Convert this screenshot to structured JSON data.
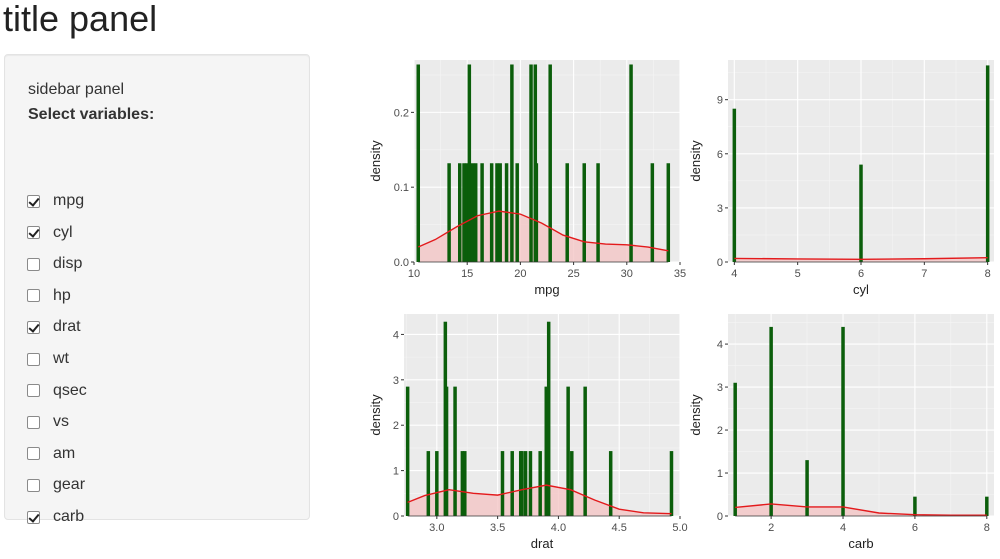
{
  "title": "title panel",
  "sidebar": {
    "heading": "sidebar panel",
    "label": "Select variables:",
    "options": [
      {
        "label": "mpg",
        "checked": true
      },
      {
        "label": "cyl",
        "checked": true
      },
      {
        "label": "disp",
        "checked": false
      },
      {
        "label": "hp",
        "checked": false
      },
      {
        "label": "drat",
        "checked": true
      },
      {
        "label": "wt",
        "checked": false
      },
      {
        "label": "qsec",
        "checked": false
      },
      {
        "label": "vs",
        "checked": false
      },
      {
        "label": "am",
        "checked": false
      },
      {
        "label": "gear",
        "checked": false
      },
      {
        "label": "carb",
        "checked": true
      }
    ]
  },
  "colors": {
    "bar": "#0b5e0b",
    "density_line": "#e31a1c",
    "density_fill": "#f4c6c6",
    "panel_bg": "#ebebeb"
  },
  "chart_data": [
    {
      "type": "bar",
      "title": "",
      "xlabel": "mpg",
      "ylabel": "density",
      "xlim": [
        10,
        35
      ],
      "ylim": [
        0,
        0.27
      ],
      "xticks": [
        10,
        15,
        20,
        25,
        30,
        35
      ],
      "xtick_labels": [
        "10",
        "15",
        "20",
        "25",
        "30",
        "35"
      ],
      "yticks": [
        0,
        0.1,
        0.2
      ],
      "ytick_labels": [
        "0.0",
        "0.1",
        "0.2"
      ],
      "bar_width": 0.27,
      "bars": [
        {
          "x": 10.4,
          "y": 0.264
        },
        {
          "x": 13.3,
          "y": 0.132
        },
        {
          "x": 14.3,
          "y": 0.132
        },
        {
          "x": 14.7,
          "y": 0.132
        },
        {
          "x": 15.0,
          "y": 0.132
        },
        {
          "x": 15.2,
          "y": 0.264
        },
        {
          "x": 15.5,
          "y": 0.132
        },
        {
          "x": 15.8,
          "y": 0.132
        },
        {
          "x": 16.4,
          "y": 0.132
        },
        {
          "x": 17.3,
          "y": 0.132
        },
        {
          "x": 17.8,
          "y": 0.132
        },
        {
          "x": 18.1,
          "y": 0.132
        },
        {
          "x": 18.7,
          "y": 0.132
        },
        {
          "x": 19.2,
          "y": 0.264
        },
        {
          "x": 19.7,
          "y": 0.132
        },
        {
          "x": 21.0,
          "y": 0.264
        },
        {
          "x": 21.4,
          "y": 0.264
        },
        {
          "x": 21.5,
          "y": 0.132
        },
        {
          "x": 22.8,
          "y": 0.264
        },
        {
          "x": 24.4,
          "y": 0.132
        },
        {
          "x": 26.0,
          "y": 0.132
        },
        {
          "x": 27.3,
          "y": 0.132
        },
        {
          "x": 30.4,
          "y": 0.264
        },
        {
          "x": 32.4,
          "y": 0.132
        },
        {
          "x": 33.9,
          "y": 0.132
        }
      ],
      "density": [
        [
          10.4,
          0.02
        ],
        [
          12,
          0.03
        ],
        [
          14,
          0.047
        ],
        [
          16,
          0.062
        ],
        [
          18,
          0.068
        ],
        [
          20,
          0.064
        ],
        [
          22,
          0.052
        ],
        [
          24,
          0.036
        ],
        [
          26,
          0.027
        ],
        [
          28,
          0.024
        ],
        [
          30,
          0.023
        ],
        [
          32,
          0.02
        ],
        [
          33.9,
          0.015
        ]
      ]
    },
    {
      "type": "bar",
      "title": "",
      "xlabel": "cyl",
      "ylabel": "density",
      "xlim": [
        3.9,
        8.1
      ],
      "ylim": [
        0,
        11.2
      ],
      "xticks": [
        4,
        5,
        6,
        7,
        8
      ],
      "xtick_labels": [
        "4",
        "5",
        "6",
        "7",
        "8"
      ],
      "yticks": [
        0,
        3,
        6,
        9
      ],
      "ytick_labels": [
        "0",
        "3",
        "6",
        "9"
      ],
      "bar_width": 0.045,
      "bars": [
        {
          "x": 4,
          "y": 8.5
        },
        {
          "x": 6,
          "y": 5.4
        },
        {
          "x": 8,
          "y": 10.9
        }
      ],
      "density": [
        [
          4,
          0.2
        ],
        [
          5,
          0.17
        ],
        [
          6,
          0.15
        ],
        [
          7,
          0.18
        ],
        [
          8,
          0.24
        ]
      ]
    },
    {
      "type": "bar",
      "title": "",
      "xlabel": "drat",
      "ylabel": "density",
      "xlim": [
        2.73,
        5.0
      ],
      "ylim": [
        0,
        4.45
      ],
      "xticks": [
        3.0,
        3.5,
        4.0,
        4.5,
        5.0
      ],
      "xtick_labels": [
        "3.0",
        "3.5",
        "4.0",
        "4.5",
        "5.0"
      ],
      "yticks": [
        0,
        1,
        2,
        3,
        4
      ],
      "ytick_labels": [
        "0",
        "1",
        "2",
        "3",
        "4"
      ],
      "bar_width": 0.028,
      "bars": [
        {
          "x": 2.76,
          "y": 2.85
        },
        {
          "x": 2.93,
          "y": 1.43
        },
        {
          "x": 3.0,
          "y": 1.43
        },
        {
          "x": 3.07,
          "y": 4.28
        },
        {
          "x": 3.08,
          "y": 2.85
        },
        {
          "x": 3.15,
          "y": 2.85
        },
        {
          "x": 3.21,
          "y": 1.43
        },
        {
          "x": 3.23,
          "y": 1.43
        },
        {
          "x": 3.54,
          "y": 1.43
        },
        {
          "x": 3.62,
          "y": 1.43
        },
        {
          "x": 3.69,
          "y": 1.43
        },
        {
          "x": 3.7,
          "y": 1.43
        },
        {
          "x": 3.73,
          "y": 1.43
        },
        {
          "x": 3.77,
          "y": 1.43
        },
        {
          "x": 3.85,
          "y": 1.43
        },
        {
          "x": 3.9,
          "y": 2.85
        },
        {
          "x": 3.92,
          "y": 4.28
        },
        {
          "x": 4.08,
          "y": 2.85
        },
        {
          "x": 4.11,
          "y": 1.43
        },
        {
          "x": 4.22,
          "y": 2.85
        },
        {
          "x": 4.43,
          "y": 1.43
        },
        {
          "x": 4.93,
          "y": 1.43
        }
      ],
      "density": [
        [
          2.76,
          0.3
        ],
        [
          2.9,
          0.45
        ],
        [
          3.1,
          0.58
        ],
        [
          3.3,
          0.5
        ],
        [
          3.5,
          0.46
        ],
        [
          3.7,
          0.58
        ],
        [
          3.9,
          0.68
        ],
        [
          4.1,
          0.58
        ],
        [
          4.3,
          0.35
        ],
        [
          4.5,
          0.15
        ],
        [
          4.7,
          0.07
        ],
        [
          4.93,
          0.05
        ]
      ]
    },
    {
      "type": "bar",
      "title": "",
      "xlabel": "carb",
      "ylabel": "density",
      "xlim": [
        0.8,
        8.2
      ],
      "ylim": [
        0,
        4.7
      ],
      "xticks": [
        2,
        4,
        6,
        8
      ],
      "xtick_labels": [
        "2",
        "4",
        "6",
        "8"
      ],
      "yticks": [
        0,
        1,
        2,
        3,
        4
      ],
      "ytick_labels": [
        "0",
        "1",
        "2",
        "3",
        "4"
      ],
      "bar_width": 0.09,
      "bars": [
        {
          "x": 1,
          "y": 3.1
        },
        {
          "x": 2,
          "y": 4.4
        },
        {
          "x": 3,
          "y": 1.3
        },
        {
          "x": 4,
          "y": 4.4
        },
        {
          "x": 6,
          "y": 0.45
        },
        {
          "x": 8,
          "y": 0.45
        }
      ],
      "density": [
        [
          1,
          0.2
        ],
        [
          2,
          0.28
        ],
        [
          3,
          0.21
        ],
        [
          4,
          0.21
        ],
        [
          5,
          0.07
        ],
        [
          6,
          0.03
        ],
        [
          7,
          0.02
        ],
        [
          8,
          0.02
        ]
      ]
    }
  ]
}
